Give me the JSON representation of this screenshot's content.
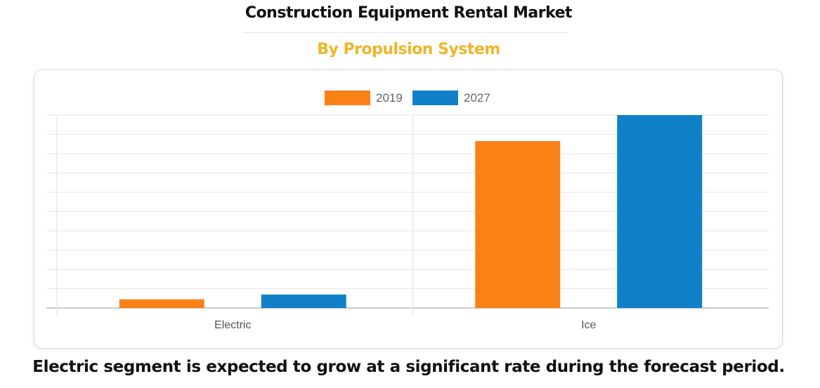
{
  "title": "Construction Equipment Rental Market",
  "subtitle": "By Propulsion System",
  "footnote": "Electric segment is expected to grow at a significant rate during the forecast period.",
  "colors": {
    "series_2019": "#fa8116",
    "series_2027": "#1081c9",
    "subtitle": "#f0b429"
  },
  "chart_data": {
    "type": "bar",
    "categories": [
      "Electric",
      "Ice"
    ],
    "series": [
      {
        "name": "2019",
        "values": [
          4.5,
          86.5
        ]
      },
      {
        "name": "2027",
        "values": [
          7,
          100
        ]
      }
    ],
    "ylim": [
      0,
      100
    ],
    "grid": true,
    "legend": "top-center",
    "y_tick_labels_shown": false
  }
}
